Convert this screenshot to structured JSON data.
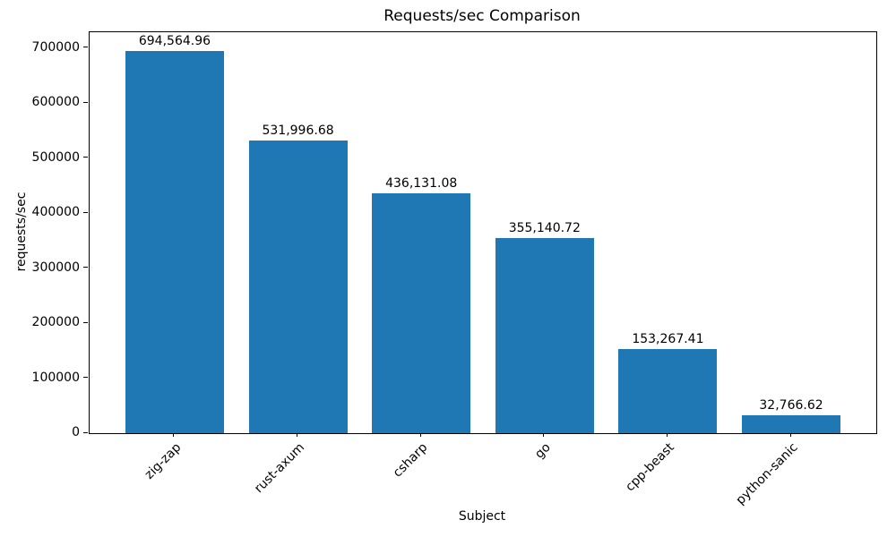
{
  "chart_data": {
    "type": "bar",
    "title": "Requests/sec Comparison",
    "xlabel": "Subject",
    "ylabel": "requests/sec",
    "categories": [
      "zig-zap",
      "rust-axum",
      "csharp",
      "go",
      "cpp-beast",
      "python-sanic"
    ],
    "values": [
      694564.96,
      531996.68,
      436131.08,
      355140.72,
      153267.41,
      32766.62
    ],
    "value_labels": [
      "694,564.96",
      "531,996.68",
      "436,131.08",
      "355,140.72",
      "153,267.41",
      "32,766.62"
    ],
    "bar_color": "#1f77b4",
    "ylim": [
      0,
      729293
    ],
    "ytick_values": [
      0,
      100000,
      200000,
      300000,
      400000,
      500000,
      600000,
      700000
    ],
    "ytick_labels": [
      "0",
      "100000",
      "200000",
      "300000",
      "400000",
      "500000",
      "600000",
      "700000"
    ],
    "grid": false,
    "legend": "none"
  }
}
